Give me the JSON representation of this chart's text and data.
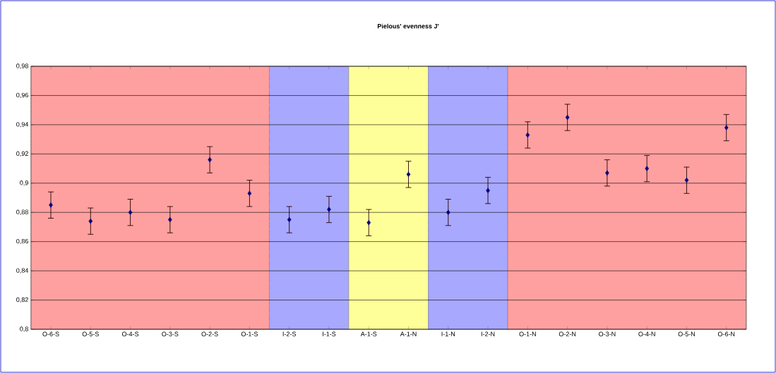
{
  "chart_data": {
    "type": "scatter",
    "title": "Pielous' evenness J'",
    "categories": [
      "O-6-S",
      "O-5-S",
      "O-4-S",
      "O-3-S",
      "O-2-S",
      "O-1-S",
      "I-2-S",
      "I-1-S",
      "A-1-S",
      "A-1-N",
      "I-1-N",
      "I-2-N",
      "O-1-N",
      "O-2-N",
      "O-3-N",
      "O-4-N",
      "O-5-N",
      "O-6-N"
    ],
    "values": [
      0.885,
      0.874,
      0.88,
      0.875,
      0.916,
      0.893,
      0.875,
      0.882,
      0.873,
      0.906,
      0.88,
      0.895,
      0.933,
      0.945,
      0.907,
      0.91,
      0.902,
      0.938
    ],
    "errors": [
      0.009,
      0.009,
      0.009,
      0.009,
      0.009,
      0.009,
      0.009,
      0.009,
      0.009,
      0.009,
      0.009,
      0.009,
      0.009,
      0.009,
      0.009,
      0.009,
      0.009,
      0.009
    ],
    "color": "#000080",
    "marker": "diamond",
    "ylim": [
      0.8,
      0.98
    ],
    "yticks": [
      {
        "value": 0.8,
        "label": "0,8"
      },
      {
        "value": 0.82,
        "label": "0,82"
      },
      {
        "value": 0.84,
        "label": "0,84"
      },
      {
        "value": 0.86,
        "label": "0,86"
      },
      {
        "value": 0.88,
        "label": "0,88"
      },
      {
        "value": 0.9,
        "label": "0,9"
      },
      {
        "value": 0.92,
        "label": "0,92"
      },
      {
        "value": 0.94,
        "label": "0,94"
      },
      {
        "value": 0.96,
        "label": "0,96"
      },
      {
        "value": 0.98,
        "label": "0,98"
      }
    ],
    "grid": "y",
    "bands": [
      {
        "axis": "x",
        "from": "O-6-S",
        "to": "O-1-S",
        "color": "#ffa0a0"
      },
      {
        "axis": "x",
        "from": "I-2-S",
        "to": "I-1-S",
        "color": "#a8a8ff"
      },
      {
        "axis": "x",
        "from": "A-1-S",
        "to": "A-1-N",
        "color": "#ffff99"
      },
      {
        "axis": "x",
        "from": "I-1-N",
        "to": "I-2-N",
        "color": "#a8a8ff"
      },
      {
        "axis": "x",
        "from": "O-1-N",
        "to": "O-6-N",
        "color": "#ffa0a0"
      }
    ]
  }
}
